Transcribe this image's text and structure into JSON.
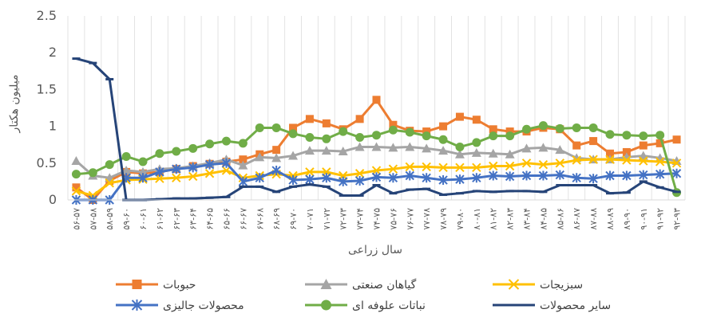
{
  "chart_data": {
    "type": "line",
    "xlabel": "سال زراعی",
    "ylabel": "میلیون هکتار",
    "ylim": [
      0,
      2.5
    ],
    "y_ticks": [
      "0",
      "0.5",
      "1",
      "1.5",
      "2",
      "2.5"
    ],
    "grid": "vertical",
    "legend_position": "bottom",
    "categories": [
      "۵۶-۵۷",
      "۵۷-۵۸",
      "۵۸-۵۹",
      "۵۹-۶۰",
      "۶۰-۶۱",
      "۶۱-۶۲",
      "۶۲-۶۳",
      "۶۳-۶۴",
      "۶۴-۶۵",
      "۶۵-۶۶",
      "۶۶-۶۷",
      "۶۷-۶۸",
      "۶۸-۶۹",
      "۶۹-۷۰",
      "۷۰-۷۱",
      "۷۱-۷۲",
      "۷۲-۷۳",
      "۷۳-۷۴",
      "۷۴-۷۵",
      "۷۵-۷۶",
      "۷۶-۷۷",
      "۷۷-۷۸",
      "۷۸-۷۹",
      "۷۹-۸۰",
      "۸۰-۸۱",
      "۸۱-۸۲",
      "۸۲-۸۳",
      "۸۳-۸۴",
      "۸۴-۸۵",
      "۸۵-۸۶",
      "۸۶-۸۷",
      "۸۷-۸۸",
      "۸۸-۸۹",
      "۸۹-۹۰",
      "۹۰-۹۱",
      "۹۱-۹۲",
      "۹۲-۹۳"
    ],
    "series": [
      {
        "name": "حبوبات",
        "color": "#ED7D31",
        "marker": "square",
        "values": [
          0.17,
          0.0,
          0.26,
          0.38,
          0.36,
          0.38,
          0.42,
          0.46,
          0.49,
          0.52,
          0.55,
          0.62,
          0.68,
          0.98,
          1.1,
          1.04,
          0.96,
          1.1,
          1.36,
          1.02,
          0.94,
          0.93,
          1.0,
          1.13,
          1.09,
          0.96,
          0.93,
          0.93,
          0.98,
          0.96,
          0.74,
          0.8,
          0.63,
          0.65,
          0.74,
          0.77,
          0.82
        ]
      },
      {
        "name": "گیاهان صنعتی",
        "color": "#A5A5A5",
        "marker": "triangle",
        "values": [
          0.53,
          0.33,
          0.3,
          0.4,
          0.38,
          0.42,
          0.43,
          0.46,
          0.5,
          0.55,
          0.47,
          0.58,
          0.57,
          0.6,
          0.67,
          0.67,
          0.66,
          0.72,
          0.72,
          0.71,
          0.72,
          0.7,
          0.67,
          0.62,
          0.64,
          0.63,
          0.62,
          0.7,
          0.71,
          0.68,
          0.57,
          0.55,
          0.55,
          0.58,
          0.6,
          0.57,
          0.53
        ]
      },
      {
        "name": "سبزیجات",
        "color": "#FFC000",
        "marker": "x",
        "values": [
          0.12,
          0.06,
          0.23,
          0.27,
          0.28,
          0.29,
          0.3,
          0.32,
          0.36,
          0.4,
          0.3,
          0.33,
          0.35,
          0.33,
          0.38,
          0.38,
          0.33,
          0.36,
          0.4,
          0.42,
          0.45,
          0.45,
          0.44,
          0.44,
          0.44,
          0.46,
          0.46,
          0.5,
          0.48,
          0.5,
          0.54,
          0.55,
          0.55,
          0.54,
          0.53,
          0.52,
          0.5
        ]
      },
      {
        "name": "محصولات جالیزی",
        "color": "#4472C4",
        "marker": "star",
        "values": [
          0.0,
          0.0,
          0.0,
          0.3,
          0.3,
          0.38,
          0.42,
          0.44,
          0.48,
          0.5,
          0.25,
          0.3,
          0.4,
          0.27,
          0.28,
          0.3,
          0.25,
          0.26,
          0.31,
          0.3,
          0.33,
          0.3,
          0.27,
          0.28,
          0.3,
          0.33,
          0.32,
          0.33,
          0.33,
          0.34,
          0.3,
          0.29,
          0.33,
          0.33,
          0.34,
          0.35,
          0.36
        ]
      },
      {
        "name": "نباتات علوفه ای",
        "color": "#70AD47",
        "marker": "circle",
        "values": [
          0.35,
          0.37,
          0.48,
          0.59,
          0.52,
          0.63,
          0.66,
          0.7,
          0.76,
          0.8,
          0.77,
          0.98,
          0.98,
          0.9,
          0.85,
          0.83,
          0.93,
          0.85,
          0.88,
          0.95,
          0.92,
          0.87,
          0.82,
          0.72,
          0.78,
          0.87,
          0.87,
          0.96,
          1.01,
          0.97,
          0.98,
          0.98,
          0.89,
          0.88,
          0.87,
          0.88,
          0.1
        ]
      },
      {
        "name": "سایر محصولات",
        "color": "#264478",
        "marker": "dash",
        "values": [
          1.92,
          1.86,
          1.64,
          0.0,
          0.0,
          0.01,
          0.02,
          0.02,
          0.03,
          0.04,
          0.18,
          0.18,
          0.11,
          0.18,
          0.21,
          0.18,
          0.06,
          0.06,
          0.2,
          0.09,
          0.14,
          0.15,
          0.07,
          0.09,
          0.12,
          0.11,
          0.12,
          0.12,
          0.11,
          0.2,
          0.2,
          0.2,
          0.09,
          0.1,
          0.25,
          0.17,
          0.11
        ]
      }
    ]
  }
}
